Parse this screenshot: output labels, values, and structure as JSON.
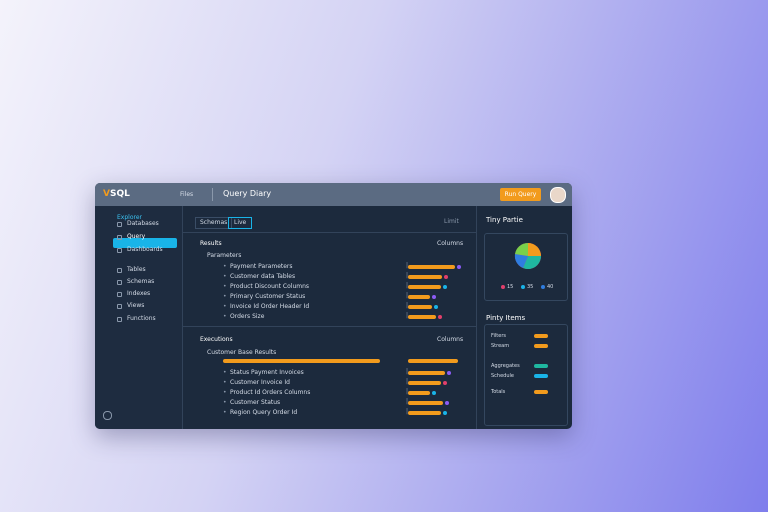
{
  "header": {
    "logo": "SQL",
    "files": "Files",
    "title": "Query Diary",
    "button": "Run Query"
  },
  "sidebar": {
    "title": "Explorer",
    "items": [
      "Databases",
      "Query",
      "Dashboards",
      "Tables",
      "Schemas",
      "Indexes",
      "Views",
      "Functions"
    ]
  },
  "toolbar": {
    "tabs": [
      "Schemas",
      "Live"
    ],
    "limit": "Limit"
  },
  "results": {
    "title": "Results",
    "dropdown": "Columns",
    "group": "Parameters",
    "rows": [
      "Payment Parameters",
      "Customer data Tables",
      "Product Discount Columns",
      "Primary Customer Status",
      "Invoice Id Order Header Id",
      "Orders Size"
    ]
  },
  "executions": {
    "title": "Executions",
    "dropdown": "Columns",
    "group": "Customer Base Results",
    "rows": [
      "Status Payment Invoices",
      "Customer Invoice Id",
      "Product Id Orders Columns",
      "Customer Status",
      "Region Query Order Id"
    ]
  },
  "right": {
    "pie_title": "Tiny Partie",
    "pie_labels": [
      "15",
      "35",
      "40"
    ],
    "items_title": "Pinty Items",
    "items": [
      "Filters",
      "Stream",
      "Aggregates",
      "Schedule",
      "Totals"
    ]
  }
}
